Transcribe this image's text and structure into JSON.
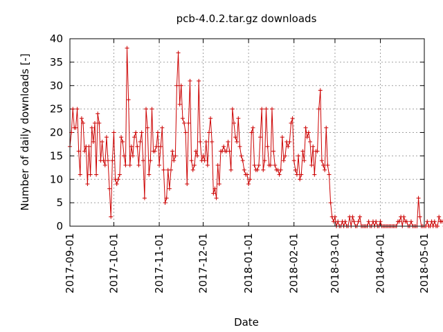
{
  "chart_data": {
    "type": "line",
    "title": "pcb-4.0.2.tar.gz downloads",
    "xlabel": "Date",
    "ylabel": "Number of daily downloads [-]",
    "xlim": [
      "2017-09-01",
      "2018-05-01"
    ],
    "ylim": [
      0,
      40
    ],
    "x_tick_labels": [
      "2017-09-01",
      "2017-10-01",
      "2017-11-01",
      "2017-12-01",
      "2018-01-01",
      "2018-02-01",
      "2018-03-01",
      "2018-04-01",
      "2018-05-01"
    ],
    "y_tick_labels": [
      "0",
      "5",
      "10",
      "15",
      "20",
      "25",
      "30",
      "35",
      "40"
    ],
    "grid": true,
    "legend": "none",
    "series_color": "#cc0000",
    "series": [
      {
        "start_date": "2017-09-01",
        "values": [
          17,
          20,
          25,
          21,
          21,
          25,
          16,
          11,
          23,
          22,
          16,
          17,
          9,
          17,
          11,
          21,
          18,
          22,
          11,
          24,
          22,
          14,
          18,
          14,
          13,
          19,
          14,
          8,
          2,
          14,
          20,
          10,
          9,
          10,
          11,
          19,
          18,
          15,
          13,
          38,
          27,
          13,
          17,
          15,
          19,
          20,
          17,
          13,
          18,
          20,
          14,
          6,
          25,
          21,
          11,
          14,
          25,
          16,
          16,
          17,
          20,
          13,
          17,
          21,
          12,
          5,
          6,
          12,
          8,
          12,
          16,
          14,
          15,
          30,
          37,
          26,
          30,
          23,
          22,
          20,
          9,
          22,
          31,
          14,
          12,
          13,
          16,
          15,
          31,
          18,
          14,
          15,
          14,
          18,
          13,
          20,
          23,
          18,
          7,
          8,
          6,
          13,
          9,
          16,
          16,
          17,
          16,
          16,
          18,
          16,
          12,
          25,
          22,
          19,
          18,
          23,
          17,
          15,
          14,
          12,
          11,
          11,
          9,
          10,
          20,
          21,
          13,
          12,
          12,
          13,
          19,
          25,
          12,
          14,
          25,
          17,
          13,
          13,
          25,
          16,
          13,
          12,
          12,
          11,
          12,
          19,
          14,
          15,
          18,
          17,
          18,
          22,
          23,
          14,
          12,
          11,
          15,
          10,
          11,
          16,
          14,
          21,
          19,
          20,
          18,
          13,
          17,
          11,
          16,
          16,
          25,
          29,
          14,
          13,
          12,
          21,
          13,
          11,
          5,
          2,
          1,
          2,
          0,
          1,
          0,
          0,
          1,
          0,
          1,
          0,
          0,
          2,
          0,
          2,
          1,
          0,
          0,
          1,
          2,
          0,
          0,
          0,
          0,
          0,
          1,
          0,
          0,
          1,
          0,
          1,
          0,
          0,
          1,
          0,
          0,
          0,
          0,
          0,
          0,
          0,
          0,
          0,
          0,
          0,
          1,
          1,
          2,
          0,
          2,
          1,
          1,
          0,
          0,
          1,
          0,
          0,
          0,
          0,
          6,
          2,
          0,
          0,
          0,
          0,
          1,
          0,
          0,
          1,
          0,
          1,
          0,
          0,
          2,
          1,
          1,
          1,
          0,
          0,
          0,
          1,
          3,
          2,
          1,
          0,
          3
        ]
      }
    ]
  }
}
